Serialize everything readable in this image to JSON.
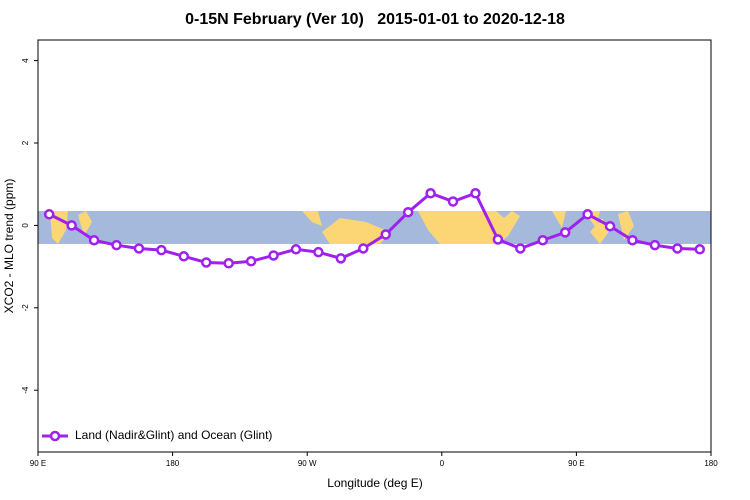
{
  "chart_data": {
    "type": "line",
    "title": "0-15N February (Ver 10)   2015-01-01 to 2020-12-18",
    "x_label": "Longitude (deg E)",
    "y_label": "XCO2 - MLO trend (ppm)",
    "xlim": [
      90,
      540
    ],
    "ylim": [
      -5.5,
      4.5
    ],
    "xticks": [
      {
        "value": 90,
        "label": "90 E"
      },
      180,
      {
        "value": 270,
        "label": "90 W"
      },
      {
        "value": 360,
        "label": "0"
      },
      {
        "value": 450,
        "label": "90 E"
      },
      {
        "value": 540,
        "label": "180"
      }
    ],
    "yticks": [
      -4,
      -2,
      0,
      2,
      4
    ],
    "legend": "bottomleft",
    "x": [
      97.5,
      112.5,
      127.5,
      142.5,
      157.5,
      172.5,
      187.5,
      202.5,
      217.5,
      232.5,
      247.5,
      262.5,
      277.5,
      292.5,
      307.5,
      322.5,
      337.5,
      352.5,
      367.5,
      382.5,
      397.5,
      412.5,
      427.5,
      442.5,
      457.5,
      472.5,
      487.5,
      502.5,
      517.5,
      532.5
    ],
    "series": [
      {
        "name": "Land (Nadir&Glint) and Ocean (Glint)",
        "color": "#a020f0",
        "values": [
          0.27,
          0.0,
          -0.36,
          -0.48,
          -0.56,
          -0.6,
          -0.75,
          -0.9,
          -0.92,
          -0.87,
          -0.73,
          -0.58,
          -0.65,
          -0.8,
          -0.56,
          -0.22,
          0.32,
          0.78,
          0.58,
          0.78,
          -0.34,
          -0.56,
          -0.36,
          -0.17,
          0.27,
          -0.02,
          -0.36,
          -0.48,
          -0.56,
          -0.58
        ]
      }
    ]
  }
}
